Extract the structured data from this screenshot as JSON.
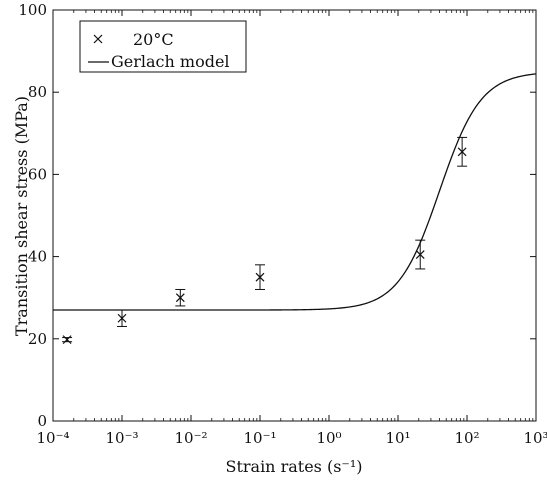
{
  "chart_data": {
    "type": "scatter",
    "title": "",
    "xlabel": "Strain rates (s⁻¹)",
    "ylabel": "Transition shear stress (MPa)",
    "xscale": "log",
    "xlim": [
      0.0001,
      1000
    ],
    "ylim": [
      0,
      100
    ],
    "x_tick_labels": [
      "10⁻⁴",
      "10⁻³",
      "10⁻²",
      "10⁻¹",
      "10⁰",
      "10¹",
      "10²",
      "10³"
    ],
    "y_tick_labels": [
      "0",
      "20",
      "40",
      "60",
      "80",
      "100"
    ],
    "grid": false,
    "legend_position": "top-left",
    "series": [
      {
        "name": "20°C",
        "marker": "x",
        "x": [
          0.00016,
          0.001,
          0.007,
          0.1,
          21,
          85
        ],
        "y": [
          19.8,
          25,
          30,
          35,
          40.5,
          65.5
        ],
        "error": [
          0.5,
          2,
          2,
          3,
          3.5,
          3.5
        ]
      },
      {
        "name": "Gerlach model",
        "line": "solid",
        "lower_plateau": 27,
        "upper_plateau": 85,
        "transition_center_x": 40,
        "transition_width_decades": 0.3
      }
    ]
  }
}
